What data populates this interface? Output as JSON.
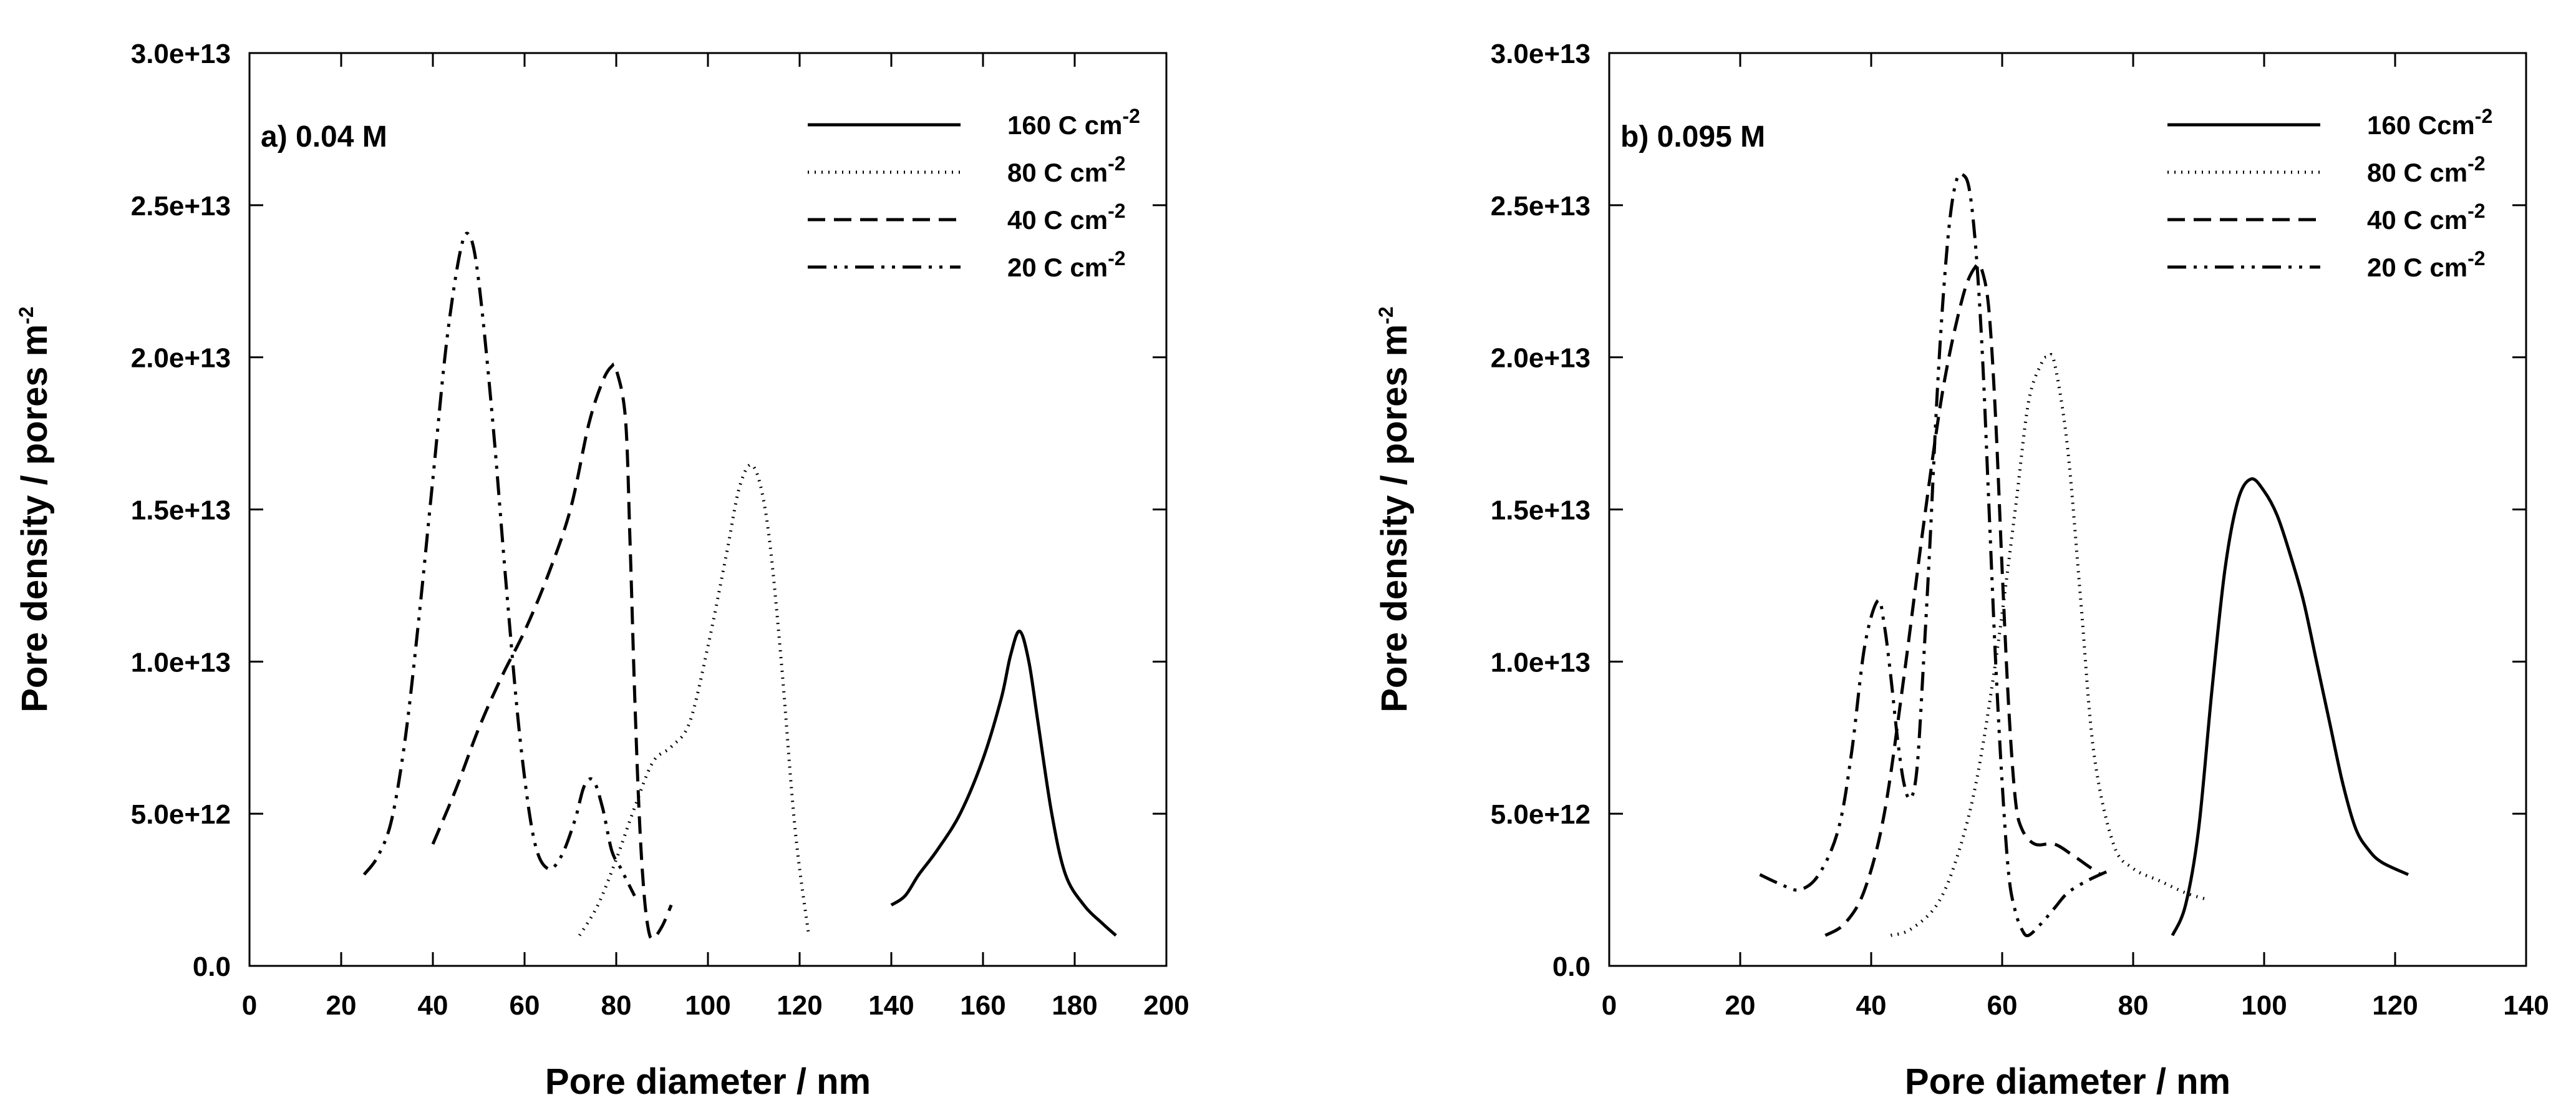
{
  "chart_data": [
    {
      "type": "line",
      "panel_label": "a) 0.04 M",
      "xlabel": "Pore diameter  /  nm",
      "ylabel_main": "Pore density  /  pores m",
      "ylabel_exp": "-2",
      "xlim": [
        0,
        200
      ],
      "ylim": [
        0,
        30000000000000.0
      ],
      "xticks": [
        0,
        20,
        40,
        60,
        80,
        100,
        120,
        140,
        160,
        180,
        200
      ],
      "xtick_labels": [
        "0",
        "20",
        "40",
        "60",
        "80",
        "100",
        "120",
        "140",
        "160",
        "180",
        "200"
      ],
      "yticks": [
        0,
        5000000000000.0,
        10000000000000.0,
        15000000000000.0,
        20000000000000.0,
        25000000000000.0,
        30000000000000.0
      ],
      "ytick_labels": [
        "0.0",
        "5.0e+12",
        "1.0e+13",
        "1.5e+13",
        "2.0e+13",
        "2.5e+13",
        "3.0e+13"
      ],
      "legend_position": "top-right",
      "series": [
        {
          "name": "160 C cm",
          "exp": "-2",
          "style": "solid",
          "x": [
            140,
            143,
            146,
            150,
            155,
            160,
            164,
            166,
            168,
            170,
            172,
            175,
            178,
            182,
            186,
            189
          ],
          "y": [
            2000000000000.0,
            2300000000000.0,
            3000000000000.0,
            3800000000000.0,
            5000000000000.0,
            6800000000000.0,
            8800000000000.0,
            10200000000000.0,
            11000000000000.0,
            10000000000000.0,
            8000000000000.0,
            5000000000000.0,
            3000000000000.0,
            2000000000000.0,
            1400000000000.0,
            1000000000000.0
          ]
        },
        {
          "name": "80 C cm",
          "exp": "-2",
          "style": "dotted",
          "x": [
            72,
            76,
            80,
            84,
            88,
            92,
            96,
            100,
            104,
            107,
            110,
            113,
            116,
            119,
            122
          ],
          "y": [
            1000000000000.0,
            2000000000000.0,
            3500000000000.0,
            5200000000000.0,
            6700000000000.0,
            7200000000000.0,
            8000000000000.0,
            10500000000000.0,
            13500000000000.0,
            15800000000000.0,
            16400000000000.0,
            14500000000000.0,
            10000000000000.0,
            4500000000000.0,
            1000000000000.0
          ]
        },
        {
          "name": "40 C cm",
          "exp": "-2",
          "style": "dashed",
          "x": [
            40,
            45,
            50,
            55,
            60,
            65,
            70,
            74,
            77,
            79,
            80,
            82,
            83,
            84,
            85,
            86,
            87,
            88,
            90,
            92
          ],
          "y": [
            4000000000000.0,
            5800000000000.0,
            7800000000000.0,
            9500000000000.0,
            11000000000000.0,
            12800000000000.0,
            15000000000000.0,
            17800000000000.0,
            19200000000000.0,
            19700000000000.0,
            19600000000000.0,
            18000000000000.0,
            14000000000000.0,
            9000000000000.0,
            5000000000000.0,
            2500000000000.0,
            1200000000000.0,
            900000000000.0,
            1300000000000.0,
            2000000000000.0
          ]
        },
        {
          "name": "20 C cm",
          "exp": "-2",
          "style": "dashdotdot",
          "x": [
            25,
            28,
            31,
            34,
            37,
            40,
            43,
            46,
            48,
            50,
            53,
            56,
            59,
            62,
            65,
            68,
            71,
            73,
            75,
            77,
            79,
            81,
            83,
            84
          ],
          "y": [
            3000000000000.0,
            3600000000000.0,
            4800000000000.0,
            7500000000000.0,
            11500000000000.0,
            16000000000000.0,
            20500000000000.0,
            23500000000000.0,
            24000000000000.0,
            22500000000000.0,
            18000000000000.0,
            12500000000000.0,
            7500000000000.0,
            4200000000000.0,
            3200000000000.0,
            3600000000000.0,
            4800000000000.0,
            5900000000000.0,
            6100000000000.0,
            5200000000000.0,
            3800000000000.0,
            3200000000000.0,
            2600000000000.0,
            2300000000000.0
          ]
        }
      ]
    },
    {
      "type": "line",
      "panel_label": "b) 0.095 M",
      "xlabel": "Pore diameter  /  nm",
      "ylabel_main": "Pore density  /  pores m",
      "ylabel_exp": "-2",
      "xlim": [
        0,
        140
      ],
      "ylim": [
        0,
        30000000000000.0
      ],
      "xticks": [
        0,
        20,
        40,
        60,
        80,
        100,
        120,
        140
      ],
      "xtick_labels": [
        "0",
        "20",
        "40",
        "60",
        "80",
        "100",
        "120",
        "140"
      ],
      "yticks": [
        0,
        5000000000000.0,
        10000000000000.0,
        15000000000000.0,
        20000000000000.0,
        25000000000000.0,
        30000000000000.0
      ],
      "ytick_labels": [
        "0.0",
        "5.0e+12",
        "1.0e+13",
        "1.5e+13",
        "2.0e+13",
        "2.5e+13",
        "3.0e+13"
      ],
      "legend_position": "top-right",
      "series": [
        {
          "name": "160 Ccm",
          "exp": "-2",
          "style": "solid",
          "x": [
            86,
            88,
            90,
            92,
            94,
            96,
            98,
            100,
            102,
            104,
            106,
            108,
            110,
            112,
            114,
            116,
            118,
            122
          ],
          "y": [
            1000000000000.0,
            2000000000000.0,
            4500000000000.0,
            9000000000000.0,
            13000000000000.0,
            15300000000000.0,
            16000000000000.0,
            15600000000000.0,
            14800000000000.0,
            13500000000000.0,
            12000000000000.0,
            10000000000000.0,
            8000000000000.0,
            6000000000000.0,
            4500000000000.0,
            3800000000000.0,
            3400000000000.0,
            3000000000000.0
          ]
        },
        {
          "name": "80 C cm",
          "exp": "-2",
          "style": "dotted",
          "x": [
            43,
            46,
            50,
            53,
            56,
            59,
            62,
            64,
            66,
            67,
            68,
            70,
            72,
            74,
            77,
            80,
            84,
            88,
            91
          ],
          "y": [
            1000000000000.0,
            1200000000000.0,
            2000000000000.0,
            3500000000000.0,
            6000000000000.0,
            10000000000000.0,
            15000000000000.0,
            18500000000000.0,
            19800000000000.0,
            20000000000000.0,
            19800000000000.0,
            17000000000000.0,
            12000000000000.0,
            7000000000000.0,
            4000000000000.0,
            3200000000000.0,
            2800000000000.0,
            2400000000000.0,
            2200000000000.0
          ]
        },
        {
          "name": "40 C cm",
          "exp": "-2",
          "style": "dashed",
          "x": [
            33,
            36,
            39,
            42,
            45,
            48,
            51,
            54,
            56,
            57,
            58,
            59,
            60,
            61,
            62,
            63,
            65,
            68,
            71,
            73,
            75
          ],
          "y": [
            1000000000000.0,
            1400000000000.0,
            2500000000000.0,
            5000000000000.0,
            9500000000000.0,
            14500000000000.0,
            19000000000000.0,
            22000000000000.0,
            23000000000000.0,
            22800000000000.0,
            21500000000000.0,
            18000000000000.0,
            13000000000000.0,
            8500000000000.0,
            5500000000000.0,
            4500000000000.0,
            4000000000000.0,
            4000000000000.0,
            3600000000000.0,
            3300000000000.0,
            3000000000000.0
          ]
        },
        {
          "name": "20 C cm",
          "exp": "-2",
          "style": "dashdotdot",
          "x": [
            23,
            26,
            29,
            32,
            35,
            37,
            39,
            41,
            42,
            43,
            44,
            45,
            46,
            47,
            48,
            49,
            50,
            51,
            52,
            53,
            54,
            55,
            56,
            57,
            58,
            59,
            60,
            61,
            62,
            63,
            64,
            66,
            68,
            70,
            73,
            76
          ],
          "y": [
            3000000000000.0,
            2700000000000.0,
            2500000000000.0,
            3000000000000.0,
            4500000000000.0,
            7000000000000.0,
            10500000000000.0,
            12000000000000.0,
            11200000000000.0,
            9500000000000.0,
            7500000000000.0,
            6000000000000.0,
            5500000000000.0,
            6500000000000.0,
            10000000000000.0,
            14000000000000.0,
            18500000000000.0,
            22000000000000.0,
            24500000000000.0,
            25800000000000.0,
            26000000000000.0,
            25500000000000.0,
            23500000000000.0,
            20000000000000.0,
            15000000000000.0,
            10000000000000.0,
            6000000000000.0,
            3000000000000.0,
            1800000000000.0,
            1200000000000.0,
            1000000000000.0,
            1400000000000.0,
            1900000000000.0,
            2400000000000.0,
            2800000000000.0,
            3100000000000.0
          ]
        }
      ]
    }
  ]
}
